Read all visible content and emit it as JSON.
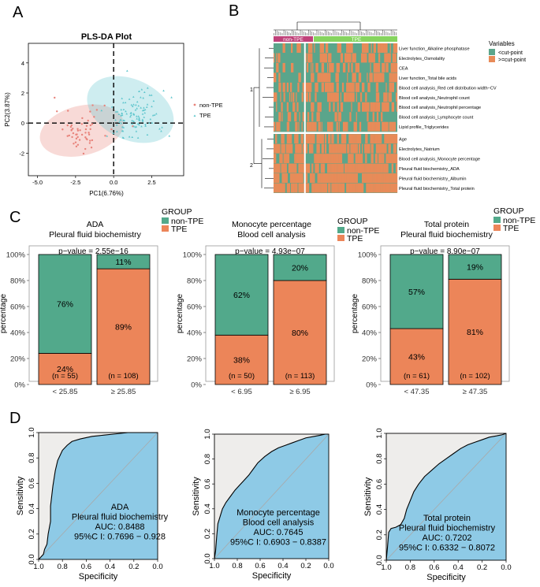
{
  "figure": {
    "panel_labels": [
      "A",
      "B",
      "C",
      "D"
    ],
    "colors": {
      "nonTPE": "#e8837b",
      "TPE": "#5cc5cc",
      "teal": "#52a98b",
      "orange": "#ec8559",
      "roc_fill": "#8ecae6",
      "roc_bg": "#eeedeb",
      "heat_teal": "#5ba58b",
      "heat_orange": "#e88b58"
    }
  },
  "chart_data": [
    {
      "id": "A",
      "type": "scatter",
      "title": "PLS-DA Plot",
      "xlabel": "PC1(6.76%)",
      "ylabel": "PC2(3.87%)",
      "xlim": [
        -5.6,
        4.6
      ],
      "ylim": [
        -3.5,
        5.3
      ],
      "xticks": [
        -5.0,
        -2.5,
        0.0,
        2.5
      ],
      "xtick_labels": [
        "-5.0",
        "-2.5",
        "0.0",
        "2.5"
      ],
      "yticks": [
        -2,
        0,
        2,
        4
      ],
      "ytick_labels": [
        "-2",
        "0",
        "2",
        "4"
      ],
      "legend": [
        "non-TPE",
        "TPE"
      ],
      "series": [
        {
          "name": "non-TPE",
          "color": "#e8837b",
          "n": 55,
          "center": [
            -2.1,
            -0.5
          ],
          "spread": [
            1.15,
            1.0
          ],
          "ellipse": {
            "cx": -2.1,
            "cy": -0.5,
            "rx": 2.8,
            "ry": 1.65,
            "angle": 14
          }
        },
        {
          "name": "TPE",
          "color": "#5cc5cc",
          "n": 110,
          "center": [
            1.4,
            0.5
          ],
          "spread": [
            1.3,
            1.2
          ],
          "ellipse": {
            "cx": 1.1,
            "cy": 0.9,
            "rx": 3.0,
            "ry": 2.0,
            "angle": -25
          }
        }
      ]
    },
    {
      "id": "B",
      "type": "heatmap",
      "groups": [
        "non-TPE",
        "TPE"
      ],
      "group_split": 0.25,
      "clusters": [
        "1",
        "2"
      ],
      "rows": [
        "Liver function_Alkaline phosphatase",
        "Electrolytes_Osmolality",
        "CEA",
        "Liver function_Total bile acids",
        "Blood cell analysis_Red cell distribution width−CV",
        "Blood cell analysis_Neutrophil count",
        "Blood cell analysis_Neutrophil percentage",
        "Blood cell analysis_Lymphocyte count",
        "Lipid profile_Triglycerides",
        "Age",
        "Electrolytes_Natrium",
        "Blood cell analysis_Monocyte percentage",
        "Pleural fluid biochemistry_ADA",
        "Pleural fluid biochemistry_Albumin",
        "Pleural fluid biochemistry_Total protein"
      ],
      "row_cluster": [
        1,
        1,
        1,
        1,
        1,
        1,
        1,
        1,
        1,
        2,
        2,
        2,
        2,
        2,
        2
      ],
      "legend_title": "Variables",
      "legend": [
        "<cut-point",
        ">=cut-point"
      ]
    },
    {
      "id": "C1",
      "type": "bar",
      "title_lines": [
        "ADA",
        "Pleural fluid biochemistry"
      ],
      "pvalue": "p−value = 2.55e−16",
      "categories": [
        "< 25.85",
        "≥ 25.85"
      ],
      "n_labels": [
        "(n = 55)",
        "(n = 108)"
      ],
      "series": [
        {
          "name": "TPE",
          "values": [
            24,
            89
          ]
        },
        {
          "name": "non-TPE",
          "values": [
            76,
            11
          ]
        }
      ],
      "value_labels": {
        "TPE": [
          "24%",
          "89%"
        ],
        "non-TPE": [
          "76%",
          "11%"
        ]
      },
      "ylabel": "percentage",
      "yticks": [
        "0%",
        "20%",
        "40%",
        "60%",
        "80%",
        "100%"
      ],
      "ylim": [
        0,
        100
      ],
      "legend_title": "GROUP",
      "legend": [
        "non-TPE",
        "TPE"
      ]
    },
    {
      "id": "C2",
      "type": "bar",
      "title_lines": [
        "Monocyte percentage",
        "Blood cell analysis"
      ],
      "pvalue": "p−value = 4.93e−07",
      "categories": [
        "< 6.95",
        "≥ 6.95"
      ],
      "n_labels": [
        "(n = 50)",
        "(n = 113)"
      ],
      "series": [
        {
          "name": "TPE",
          "values": [
            38,
            80
          ]
        },
        {
          "name": "non-TPE",
          "values": [
            62,
            20
          ]
        }
      ],
      "value_labels": {
        "TPE": [
          "38%",
          "80%"
        ],
        "non-TPE": [
          "62%",
          "20%"
        ]
      },
      "ylabel": "percentage",
      "yticks": [
        "0%",
        "20%",
        "40%",
        "60%",
        "80%",
        "100%"
      ],
      "ylim": [
        0,
        100
      ],
      "legend_title": "GROUP",
      "legend": [
        "non-TPE",
        "TPE"
      ]
    },
    {
      "id": "C3",
      "type": "bar",
      "title_lines": [
        "Total protein",
        "Pleural fluid biochemistry"
      ],
      "pvalue": "p−value = 8.90e−07",
      "categories": [
        "< 47.35",
        "≥ 47.35"
      ],
      "n_labels": [
        "(n = 61)",
        "(n = 102)"
      ],
      "series": [
        {
          "name": "TPE",
          "values": [
            43,
            81
          ]
        },
        {
          "name": "non-TPE",
          "values": [
            57,
            19
          ]
        }
      ],
      "value_labels": {
        "TPE": [
          "43%",
          "81%"
        ],
        "non-TPE": [
          "57%",
          "19%"
        ]
      },
      "ylabel": "percentage",
      "yticks": [
        "0%",
        "20%",
        "40%",
        "60%",
        "80%",
        "100%"
      ],
      "ylim": [
        0,
        100
      ],
      "legend_title": "GROUP",
      "legend": [
        "non-TPE",
        "TPE"
      ]
    },
    {
      "id": "D1",
      "type": "line",
      "annotation": [
        "ADA",
        "Pleural fluid biochemistry",
        "AUC: 0.8488",
        "95%C I: 0.7696 − 0.928"
      ],
      "xlabel": "Specificity",
      "ylabel": "Sensitivity",
      "xlim": [
        1.0,
        0.0
      ],
      "ylim": [
        0,
        1
      ],
      "xtick_labels": [
        "1.0",
        "0.8",
        "0.6",
        "0.4",
        "0.2",
        "0.0"
      ],
      "ytick_labels": [
        "0.0",
        "0.2",
        "0.4",
        "0.6",
        "0.8",
        "1.0"
      ],
      "specificity": [
        1.0,
        0.98,
        0.96,
        0.95,
        0.93,
        0.92,
        0.9,
        0.9,
        0.89,
        0.88,
        0.87,
        0.86,
        0.85,
        0.84,
        0.82,
        0.8,
        0.76,
        0.72,
        0.65,
        0.55,
        0.45,
        0.35,
        0.25,
        0.15,
        0.05,
        0.0
      ],
      "sensitivity": [
        0.0,
        0.02,
        0.04,
        0.08,
        0.12,
        0.2,
        0.3,
        0.42,
        0.5,
        0.58,
        0.64,
        0.7,
        0.74,
        0.78,
        0.82,
        0.86,
        0.9,
        0.93,
        0.95,
        0.97,
        0.98,
        0.99,
        1.0,
        1.0,
        1.0,
        1.0
      ]
    },
    {
      "id": "D2",
      "type": "line",
      "annotation": [
        "Monocyte percentage",
        "Blood cell analysis",
        "AUC: 0.7645",
        "95%C I: 0.6903 − 0.8387"
      ],
      "xlabel": "Specificity",
      "ylabel": "Sensitivity",
      "xlim": [
        1.0,
        0.0
      ],
      "ylim": [
        0,
        1
      ],
      "xtick_labels": [
        "1.0",
        "0.8",
        "0.6",
        "0.4",
        "0.2",
        "0.0"
      ],
      "ytick_labels": [
        "0.0",
        "0.2",
        "0.4",
        "0.6",
        "0.8",
        "1.0"
      ],
      "specificity": [
        1.0,
        0.99,
        0.98,
        0.97,
        0.95,
        0.93,
        0.9,
        0.86,
        0.82,
        0.78,
        0.74,
        0.7,
        0.66,
        0.62,
        0.56,
        0.5,
        0.44,
        0.38,
        0.32,
        0.26,
        0.2,
        0.14,
        0.08,
        0.03,
        0.0
      ],
      "sensitivity": [
        0.0,
        0.06,
        0.18,
        0.28,
        0.34,
        0.4,
        0.45,
        0.5,
        0.55,
        0.59,
        0.63,
        0.67,
        0.72,
        0.77,
        0.82,
        0.86,
        0.89,
        0.91,
        0.93,
        0.95,
        0.97,
        0.98,
        0.99,
        1.0,
        1.0
      ]
    },
    {
      "id": "D3",
      "type": "line",
      "annotation": [
        "Total protein",
        "Pleural fluid biochemistry",
        "AUC: 0.7202",
        "95%C I: 0.6332 − 0.8072"
      ],
      "xlabel": "Specificity",
      "ylabel": "Sensitivity",
      "xlim": [
        1.0,
        0.0
      ],
      "ylim": [
        0,
        1
      ],
      "xtick_labels": [
        "1.0",
        "0.8",
        "0.6",
        "0.4",
        "0.2",
        "0.0"
      ],
      "ytick_labels": [
        "0.0",
        "0.2",
        "0.4",
        "0.6",
        "0.8",
        "1.0"
      ],
      "specificity": [
        1.0,
        0.99,
        0.98,
        0.96,
        0.92,
        0.88,
        0.85,
        0.83,
        0.8,
        0.77,
        0.73,
        0.68,
        0.62,
        0.56,
        0.5,
        0.44,
        0.38,
        0.32,
        0.26,
        0.2,
        0.14,
        0.08,
        0.03,
        0.0
      ],
      "sensitivity": [
        0.0,
        0.1,
        0.22,
        0.25,
        0.26,
        0.28,
        0.33,
        0.4,
        0.47,
        0.54,
        0.6,
        0.66,
        0.71,
        0.76,
        0.8,
        0.84,
        0.88,
        0.91,
        0.93,
        0.95,
        0.97,
        0.98,
        0.99,
        1.0
      ]
    }
  ]
}
